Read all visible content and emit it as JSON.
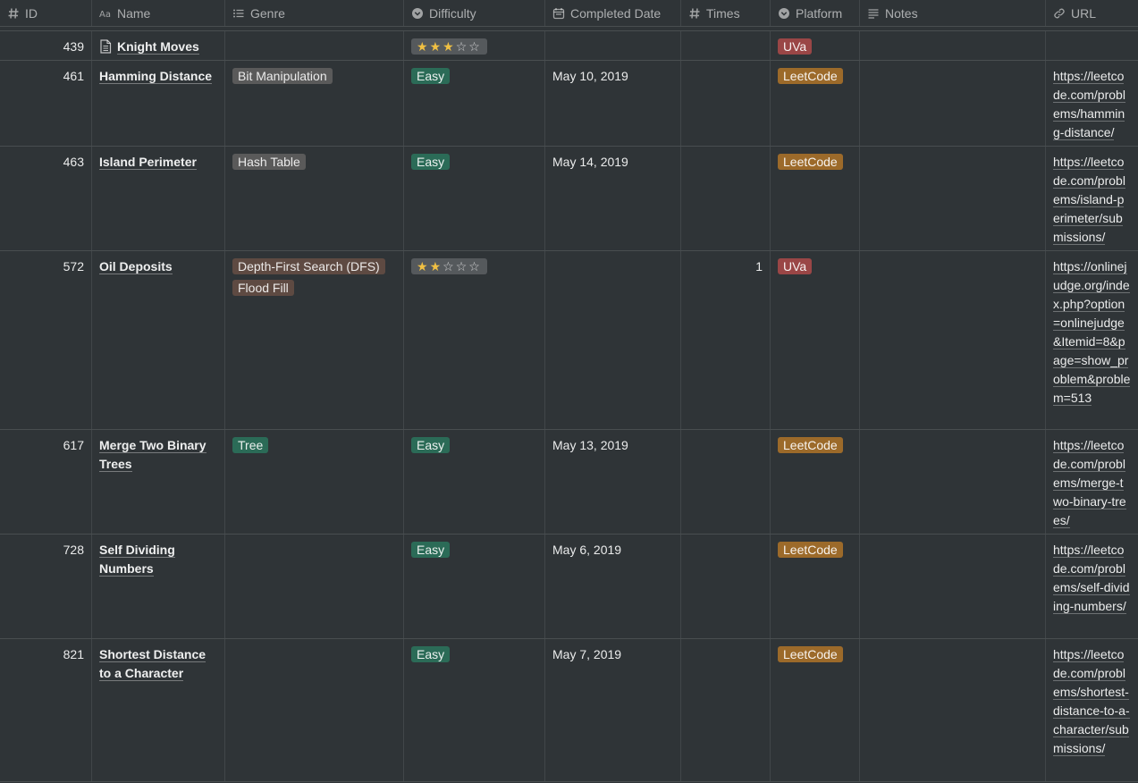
{
  "columns": [
    {
      "key": "id",
      "label": "ID",
      "icon": "hash-icon"
    },
    {
      "key": "name",
      "label": "Name",
      "icon": "text-aa-icon"
    },
    {
      "key": "genre",
      "label": "Genre",
      "icon": "list-icon"
    },
    {
      "key": "difficulty",
      "label": "Difficulty",
      "icon": "select-icon"
    },
    {
      "key": "completed",
      "label": "Completed Date",
      "icon": "calendar-icon"
    },
    {
      "key": "times",
      "label": "Times",
      "icon": "hash-icon"
    },
    {
      "key": "platform",
      "label": "Platform",
      "icon": "select-icon"
    },
    {
      "key": "notes",
      "label": "Notes",
      "icon": "lines-icon"
    },
    {
      "key": "url",
      "label": "URL",
      "icon": "link-icon"
    }
  ],
  "colors": {
    "background": "#2f3437",
    "tag_gray": "#5a5a5a",
    "tag_brown": "#5e4a42",
    "tag_green": "#2b6b57",
    "tag_orange": "#9c6a2a",
    "tag_red": "#9a4646",
    "star": "#f0c043"
  },
  "rows": [
    {
      "id": "439",
      "name": "Knight Moves",
      "has_page_icon": true,
      "genre": [],
      "difficulty": {
        "type": "stars",
        "filled": 3,
        "total": 5
      },
      "completed": "",
      "times": "",
      "platform": {
        "label": "UVa",
        "color": "red"
      },
      "notes": "",
      "url": ""
    },
    {
      "id": "461",
      "name": "Hamming Distance",
      "genre": [
        {
          "label": "Bit Manipulation",
          "color": "gray"
        }
      ],
      "difficulty": {
        "type": "tag",
        "label": "Easy"
      },
      "completed": "May 10, 2019",
      "times": "",
      "platform": {
        "label": "LeetCode",
        "color": "orange"
      },
      "notes": "",
      "url": "https://leetcode.com/problems/hamming-distance/"
    },
    {
      "id": "463",
      "name": "Island Perimeter",
      "genre": [
        {
          "label": "Hash Table",
          "color": "gray"
        }
      ],
      "difficulty": {
        "type": "tag",
        "label": "Easy"
      },
      "completed": "May 14, 2019",
      "times": "",
      "platform": {
        "label": "LeetCode",
        "color": "orange"
      },
      "notes": "",
      "url": "https://leetcode.com/problems/island-perimeter/submissions/"
    },
    {
      "id": "572",
      "name": "Oil Deposits",
      "genre": [
        {
          "label": "Depth-First Search (DFS)",
          "color": "brown"
        },
        {
          "label": "Flood Fill",
          "color": "brown"
        }
      ],
      "difficulty": {
        "type": "stars",
        "filled": 2,
        "total": 5
      },
      "completed": "",
      "times": "1",
      "platform": {
        "label": "UVa",
        "color": "red"
      },
      "notes": "",
      "url": "https://onlinejudge.org/index.php?option=onlinejudge&Itemid=8&page=show_problem&problem=513"
    },
    {
      "id": "617",
      "name": "Merge Two Binary Trees",
      "genre": [
        {
          "label": "Tree",
          "color": "green"
        }
      ],
      "difficulty": {
        "type": "tag",
        "label": "Easy"
      },
      "completed": "May 13, 2019",
      "times": "",
      "platform": {
        "label": "LeetCode",
        "color": "orange"
      },
      "notes": "",
      "url": "https://leetcode.com/problems/merge-two-binary-trees/"
    },
    {
      "id": "728",
      "name": "Self Dividing Numbers",
      "genre": [],
      "difficulty": {
        "type": "tag",
        "label": "Easy"
      },
      "completed": "May 6, 2019",
      "times": "",
      "platform": {
        "label": "LeetCode",
        "color": "orange"
      },
      "notes": "",
      "url": "https://leetcode.com/problems/self-dividing-numbers/"
    },
    {
      "id": "821",
      "name": "Shortest Distance to a Character",
      "genre": [],
      "difficulty": {
        "type": "tag",
        "label": "Easy"
      },
      "completed": "May 7, 2019",
      "times": "",
      "platform": {
        "label": "LeetCode",
        "color": "orange"
      },
      "notes": "",
      "url": "https://leetcode.com/problems/shortest-distance-to-a-character/submissions/"
    }
  ]
}
